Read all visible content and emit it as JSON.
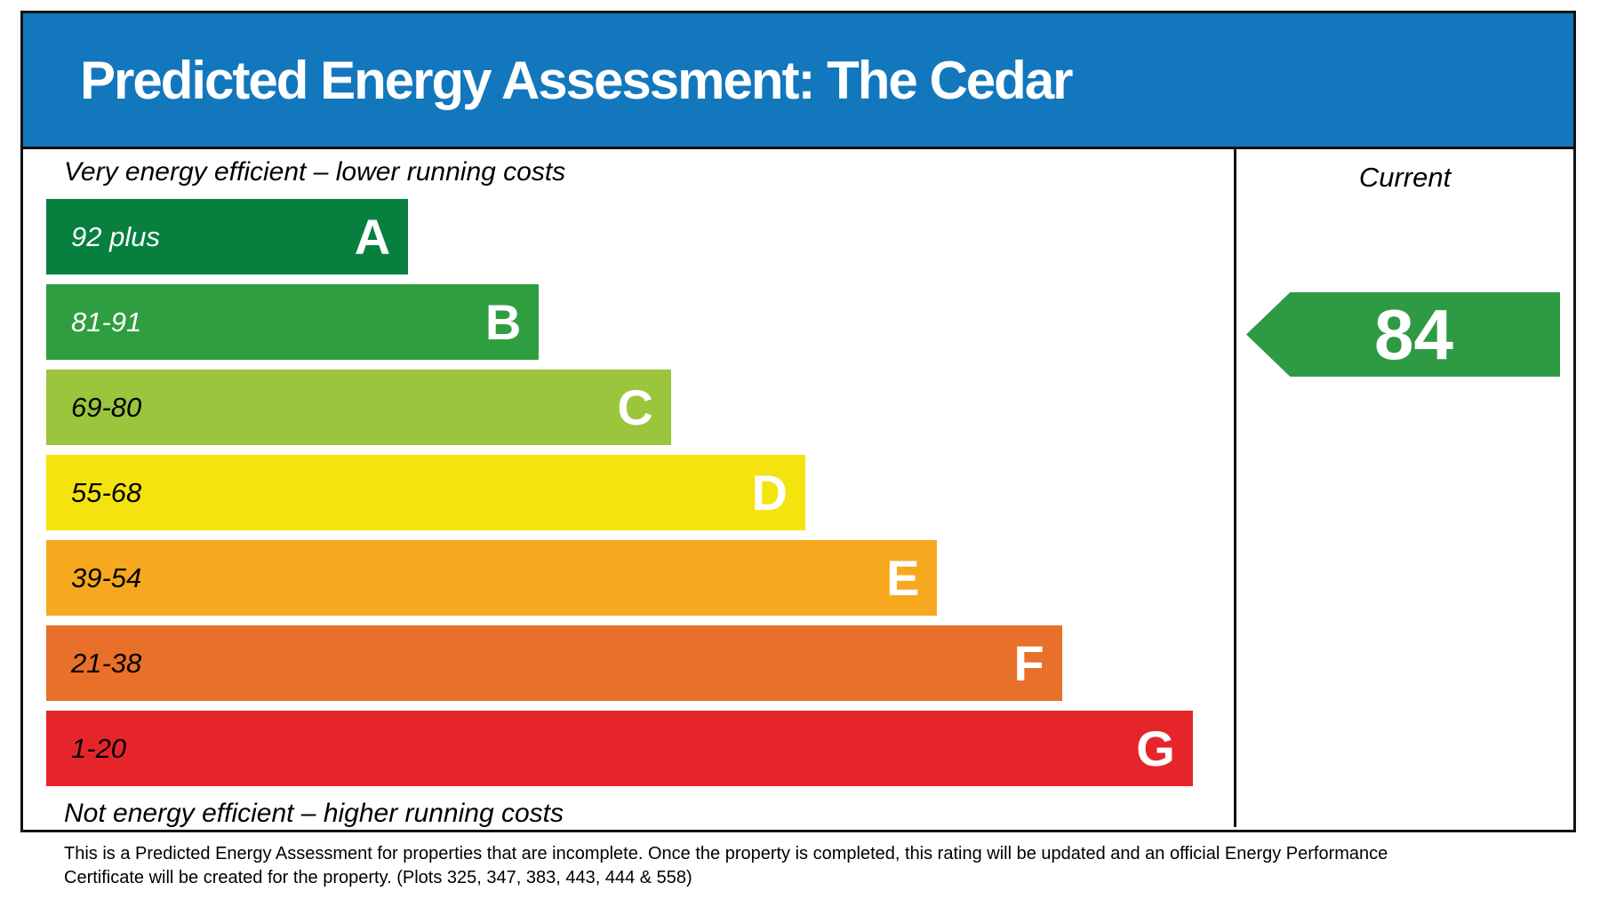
{
  "title": "Predicted Energy Assessment: The Cedar",
  "captions": {
    "top": "Very energy efficient – lower running costs",
    "bottom": "Not energy efficient – higher running costs"
  },
  "current": {
    "header": "Current",
    "value": "84",
    "band": "B",
    "arrow_color": "#2e9b44"
  },
  "bands": [
    {
      "range": "92 plus",
      "letter": "A",
      "color": "#067f3f",
      "range_text_color": "#ffffff",
      "width_pct": 29.9
    },
    {
      "range": "81-91",
      "letter": "B",
      "color": "#2f9e41",
      "range_text_color": "#ffffff",
      "width_pct": 40.7
    },
    {
      "range": "69-80",
      "letter": "C",
      "color": "#9bc53d",
      "range_text_color": "#000000",
      "width_pct": 51.6
    },
    {
      "range": "55-68",
      "letter": "D",
      "color": "#f4e30e",
      "range_text_color": "#000000",
      "width_pct": 62.7
    },
    {
      "range": "39-54",
      "letter": "E",
      "color": "#f6a81e",
      "range_text_color": "#000000",
      "width_pct": 73.6
    },
    {
      "range": "21-38",
      "letter": "F",
      "color": "#e8702a",
      "range_text_color": "#000000",
      "width_pct": 83.9
    },
    {
      "range": "1-20",
      "letter": "G",
      "color": "#e6252b",
      "range_text_color": "#000000",
      "width_pct": 94.7
    }
  ],
  "footer": {
    "line1": "This is a Predicted Energy Assessment for properties that are incomplete. Once the property is completed, this rating will be updated and an official Energy Performance",
    "line2": "Certificate will be created for the property. (Plots 325, 347, 383, 443, 444 & 558)"
  },
  "colors": {
    "header_blue": "#1377bd",
    "border_black": "#111111"
  },
  "chart_data": {
    "type": "bar",
    "title": "Predicted Energy Assessment: The Cedar",
    "categories": [
      "A",
      "B",
      "C",
      "D",
      "E",
      "F",
      "G"
    ],
    "ranges": [
      "92 plus",
      "81-91",
      "69-80",
      "55-68",
      "39-54",
      "21-38",
      "1-20"
    ],
    "bar_width_pct": [
      29.9,
      40.7,
      51.6,
      62.7,
      73.6,
      83.9,
      94.7
    ],
    "bar_colors": [
      "#067f3f",
      "#2f9e41",
      "#9bc53d",
      "#f4e30e",
      "#f6a81e",
      "#e8702a",
      "#e6252b"
    ],
    "current_rating": {
      "value": 84,
      "band": "B",
      "column_label": "Current"
    },
    "annotations": [
      "Very energy efficient – lower running costs",
      "Not energy efficient – higher running costs"
    ],
    "legend_position": "none",
    "orientation": "horizontal"
  }
}
